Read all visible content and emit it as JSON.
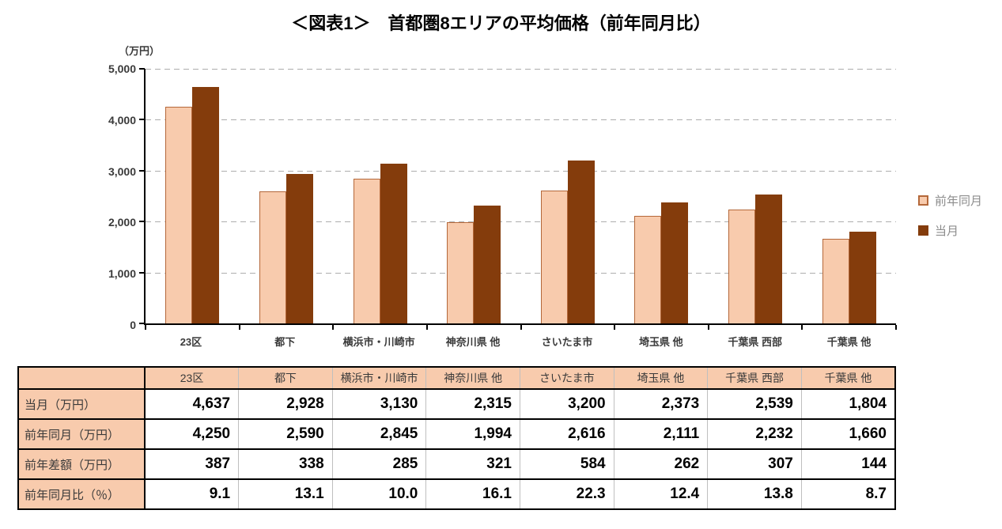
{
  "title": "＜図表1＞　首都圏8エリアの平均価格（前年同月比）",
  "chart_data": {
    "type": "bar",
    "title": "＜図表1＞　首都圏8エリアの平均価格（前年同月比）",
    "unit_label": "（万円）",
    "categories": [
      "23区",
      "都下",
      "横浜市・川崎市",
      "神奈川県 他",
      "さいたま市",
      "埼玉県 他",
      "千葉県 西部",
      "千葉県 他"
    ],
    "series": [
      {
        "name": "前年同月",
        "values": [
          4250,
          2590,
          2845,
          1994,
          2616,
          2111,
          2232,
          1660
        ],
        "fill": "#F8CBAD",
        "border": "#B4683A"
      },
      {
        "name": "当月",
        "values": [
          4637,
          2928,
          3130,
          2315,
          3200,
          2373,
          2539,
          1804
        ],
        "fill": "#843C0C",
        "border": "#843C0C"
      }
    ],
    "ylim": [
      0,
      5000
    ],
    "yticks": [
      {
        "label": "0",
        "value": 0
      },
      {
        "label": "1,000",
        "value": 1000
      },
      {
        "label": "2,000",
        "value": 2000
      },
      {
        "label": "3,000",
        "value": 3000
      },
      {
        "label": "4,000",
        "value": 4000
      },
      {
        "label": "5,000",
        "value": 5000
      }
    ],
    "grid": true,
    "legend_position": "right"
  },
  "table": {
    "corner_label": "",
    "col_headers": [
      "23区",
      "都下",
      "横浜市・川崎市",
      "神奈川県 他",
      "さいたま市",
      "埼玉県 他",
      "千葉県 西部",
      "千葉県 他"
    ],
    "rows": [
      {
        "label": "当月（万円）",
        "values": [
          "4,637",
          "2,928",
          "3,130",
          "2,315",
          "3,200",
          "2,373",
          "2,539",
          "1,804"
        ]
      },
      {
        "label": "前年同月（万円）",
        "values": [
          "4,250",
          "2,590",
          "2,845",
          "1,994",
          "2,616",
          "2,111",
          "2,232",
          "1,660"
        ]
      },
      {
        "label": "前年差額（万円）",
        "values": [
          "387",
          "338",
          "285",
          "321",
          "584",
          "262",
          "307",
          "144"
        ]
      },
      {
        "label": "前年同月比（％）",
        "values": [
          "9.1",
          "13.1",
          "10.0",
          "16.1",
          "22.3",
          "12.4",
          "13.8",
          "8.7"
        ]
      }
    ]
  },
  "colors": {
    "prev_year_fill": "#F8CBAD",
    "prev_year_border": "#B4683A",
    "current_fill": "#843C0C",
    "gridline": "#ADADAD",
    "axis": "#000000",
    "axis_text": "#3A3A3A",
    "legend_text": "#8C8C8C",
    "table_header_bg": "#F8CBAD",
    "table_grid_gray": "#BFBFBF",
    "table_border_black": "#000000"
  }
}
